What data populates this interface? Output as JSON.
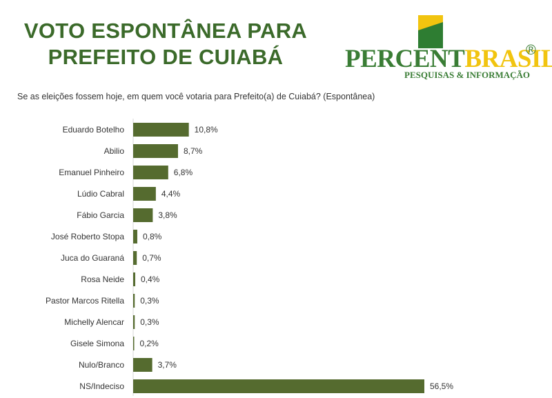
{
  "header": {
    "title_line1": "VOTO ESPONTÂNEA PARA",
    "title_line2": "PREFEITO DE CUIABÁ"
  },
  "logo": {
    "name_part1": "PERCENT",
    "name_part2": "BRASIL",
    "registered": "®",
    "tagline": "PESQUISAS & INFORMAÇÃO"
  },
  "question": "Se as eleições fossem hoje, em quem você votaria para Prefeito(a) de Cuiabá? (Espontânea)",
  "colors": {
    "title": "#3b6a2a",
    "bar": "#556b2f",
    "logo_green": "#3a7d35",
    "logo_yellow": "#f1c40f"
  },
  "chart_data": {
    "type": "bar",
    "orientation": "horizontal",
    "categories": [
      "Eduardo Botelho",
      "Abilio",
      "Emanuel Pinheiro",
      "Lúdio Cabral",
      "Fábio Garcia",
      "José Roberto Stopa",
      "Juca do Guaraná",
      "Rosa Neide",
      "Pastor Marcos Ritella",
      "Michelly Alencar",
      "Gisele Simona",
      "Nulo/Branco",
      "NS/Indeciso"
    ],
    "values": [
      10.8,
      8.7,
      6.8,
      4.4,
      3.8,
      0.8,
      0.7,
      0.4,
      0.3,
      0.3,
      0.2,
      3.7,
      56.5
    ],
    "value_labels": [
      "10,8%",
      "8,7%",
      "6,8%",
      "4,4%",
      "3,8%",
      "0,8%",
      "0,7%",
      "0,4%",
      "0,3%",
      "0,3%",
      "0,2%",
      "3,7%",
      "56,5%"
    ],
    "title": "",
    "xlabel": "",
    "ylabel": "",
    "xlim": [
      0,
      56.5
    ],
    "grid": false,
    "legend": "none"
  }
}
